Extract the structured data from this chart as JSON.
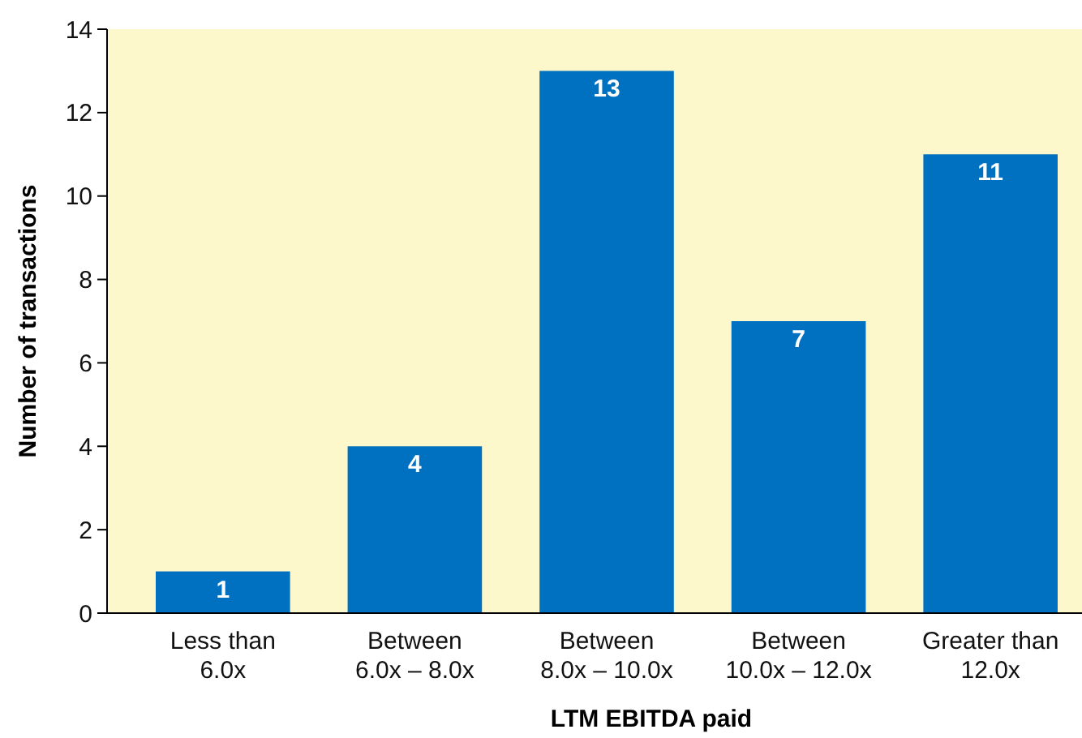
{
  "chart_data": {
    "type": "bar",
    "xlabel": "LTM EBITDA paid",
    "ylabel": "Number of transactions",
    "categories": [
      "Less than\n6.0x",
      "Between\n6.0x – 8.0x",
      "Between\n8.0x – 10.0x",
      "Between\n10.0x – 12.0x",
      "Greater than\n12.0x"
    ],
    "values": [
      1,
      4,
      13,
      7,
      11
    ],
    "color": "#0070c0",
    "ylim": [
      0,
      14
    ],
    "yticks": [
      0,
      2,
      4,
      6,
      8,
      10,
      12,
      14
    ],
    "grid": false,
    "data_labels": true
  }
}
